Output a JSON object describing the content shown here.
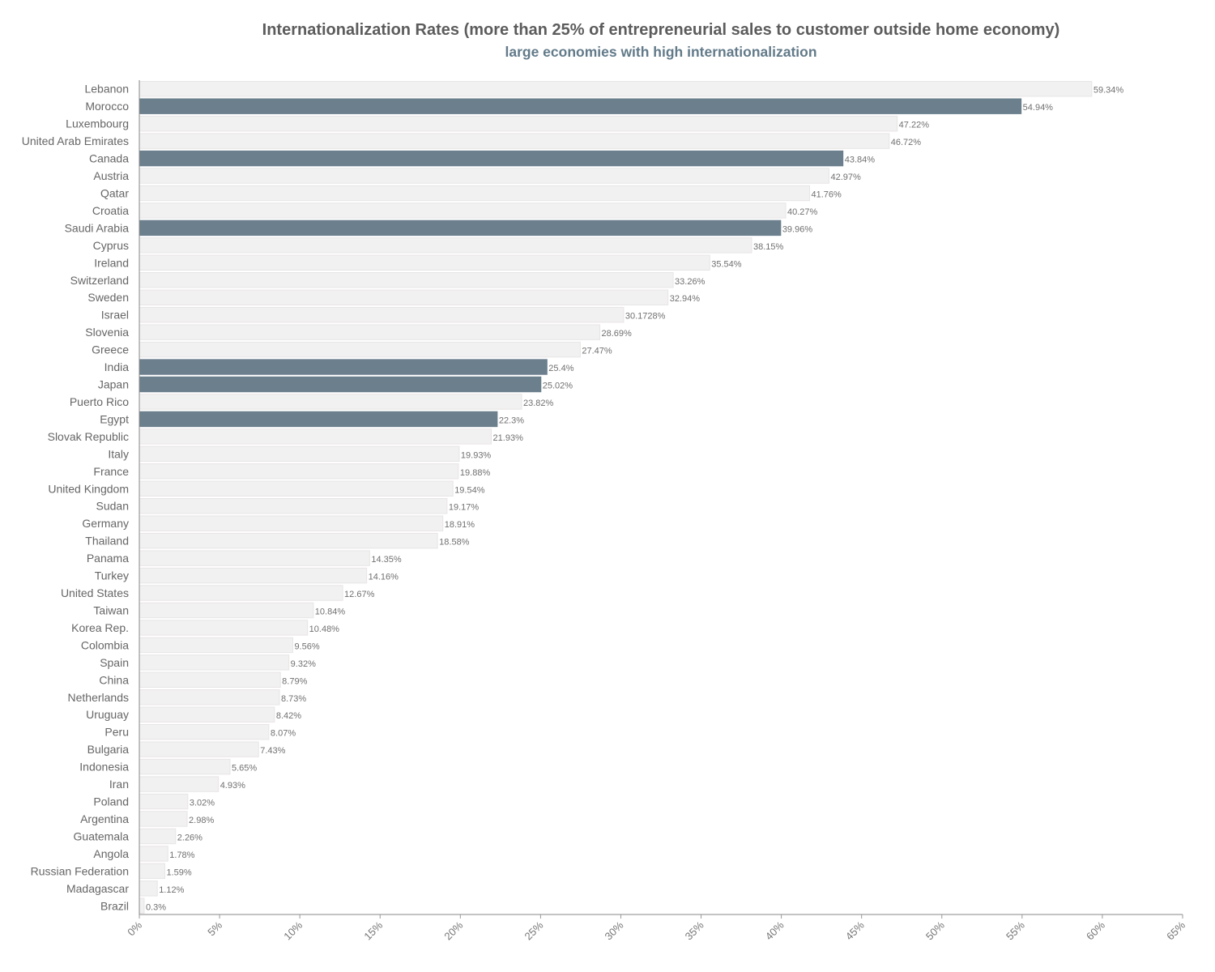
{
  "chart_data": {
    "type": "bar",
    "orientation": "horizontal",
    "title": "Internationalization Rates (more than 25% of entrepreneurial sales to customer outside home economy)",
    "subtitle": "large economies with high internationalization",
    "xlim": [
      0,
      65
    ],
    "x_ticks": [
      "0%",
      "5%",
      "10%",
      "15%",
      "20%",
      "25%",
      "30%",
      "35%",
      "40%",
      "45%",
      "50%",
      "55%",
      "60%",
      "65%"
    ],
    "grid": false,
    "colors": {
      "highlight": "#6b7f8d",
      "default": "#f1f1f1",
      "default_stroke": "#e8e4e4"
    },
    "categories": [
      "Lebanon",
      "Morocco",
      "Luxembourg",
      "United Arab Emirates",
      "Canada",
      "Austria",
      "Qatar",
      "Croatia",
      "Saudi Arabia",
      "Cyprus",
      "Ireland",
      "Switzerland",
      "Sweden",
      "Israel",
      "Slovenia",
      "Greece",
      "India",
      "Japan",
      "Puerto Rico",
      "Egypt",
      "Slovak Republic",
      "Italy",
      "France",
      "United Kingdom",
      "Sudan",
      "Germany",
      "Thailand",
      "Panama",
      "Turkey",
      "United States",
      "Taiwan",
      "Korea Rep.",
      "Colombia",
      "Spain",
      "China",
      "Netherlands",
      "Uruguay",
      "Peru",
      "Bulgaria",
      "Indonesia",
      "Iran",
      "Poland",
      "Argentina",
      "Guatemala",
      "Angola",
      "Russian Federation",
      "Madagascar",
      "Brazil"
    ],
    "values": [
      59.34,
      54.94,
      47.22,
      46.72,
      43.84,
      42.97,
      41.76,
      40.27,
      39.96,
      38.15,
      35.54,
      33.26,
      32.94,
      30.1728,
      28.69,
      27.47,
      25.4,
      25.02,
      23.82,
      22.3,
      21.93,
      19.93,
      19.88,
      19.54,
      19.17,
      18.91,
      18.58,
      14.35,
      14.16,
      12.67,
      10.84,
      10.48,
      9.56,
      9.32,
      8.79,
      8.73,
      8.42,
      8.07,
      7.43,
      5.65,
      4.93,
      3.02,
      2.98,
      2.26,
      1.78,
      1.59,
      1.12,
      0.3
    ],
    "value_labels": [
      "59.34%",
      "54.94%",
      "47.22%",
      "46.72%",
      "43.84%",
      "42.97%",
      "41.76%",
      "40.27%",
      "39.96%",
      "38.15%",
      "35.54%",
      "33.26%",
      "32.94%",
      "30.1728%",
      "28.69%",
      "27.47%",
      "25.4%",
      "25.02%",
      "23.82%",
      "22.3%",
      "21.93%",
      "19.93%",
      "19.88%",
      "19.54%",
      "19.17%",
      "18.91%",
      "18.58%",
      "14.35%",
      "14.16%",
      "12.67%",
      "10.84%",
      "10.48%",
      "9.56%",
      "9.32%",
      "8.79%",
      "8.73%",
      "8.42%",
      "8.07%",
      "7.43%",
      "5.65%",
      "4.93%",
      "3.02%",
      "2.98%",
      "2.26%",
      "1.78%",
      "1.59%",
      "1.12%",
      "0.3%"
    ],
    "highlighted": [
      "Morocco",
      "Canada",
      "Saudi Arabia",
      "India",
      "Japan",
      "Egypt"
    ]
  }
}
